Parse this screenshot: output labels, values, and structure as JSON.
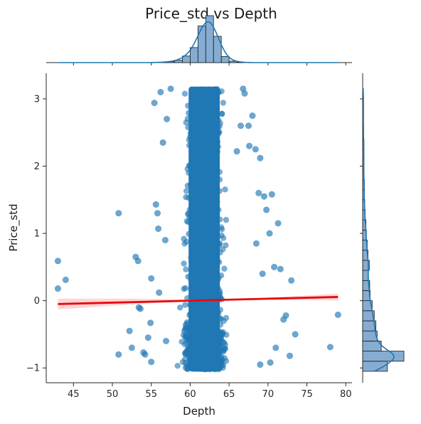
{
  "chart_data": {
    "type": "scatter",
    "title": "Price_std vs Depth",
    "xlabel": "Depth",
    "ylabel": "Price_std",
    "xlim": [
      41.5,
      80.8
    ],
    "ylim": [
      -1.22,
      3.38
    ],
    "x_ticks": [
      45,
      50,
      55,
      60,
      65,
      70,
      75,
      80
    ],
    "y_ticks": [
      -1,
      0,
      1,
      2,
      3
    ],
    "grid": false,
    "legend": "none",
    "colors": {
      "points": "#1f77b4",
      "regression": "#e6090c",
      "confidence_band": "#ffb3b3",
      "hist_fill": "#86add1",
      "kde": "#1f77b4"
    },
    "regression_line": {
      "x": [
        43.0,
        79.0
      ],
      "y": [
        -0.05,
        0.055
      ]
    },
    "confidence_band": {
      "x": [
        43.0,
        52.0,
        61.8,
        70.0,
        79.0
      ],
      "lower": [
        -0.13,
        -0.06,
        0.003,
        0.015,
        0.005
      ],
      "upper": [
        0.03,
        0.03,
        0.014,
        0.045,
        0.105
      ]
    },
    "outlier_points": [
      {
        "x": 43.0,
        "y": 0.59
      },
      {
        "x": 43.0,
        "y": 0.18
      },
      {
        "x": 44.0,
        "y": 0.31
      },
      {
        "x": 50.8,
        "y": 1.3
      },
      {
        "x": 50.8,
        "y": -0.8
      },
      {
        "x": 52.2,
        "y": -0.45
      },
      {
        "x": 52.5,
        "y": -0.7
      },
      {
        "x": 53.0,
        "y": 0.65
      },
      {
        "x": 53.3,
        "y": 0.59
      },
      {
        "x": 53.4,
        "y": -0.1
      },
      {
        "x": 53.6,
        "y": -0.12
      },
      {
        "x": 54.0,
        "y": -0.77
      },
      {
        "x": 54.2,
        "y": -0.8
      },
      {
        "x": 54.6,
        "y": -0.55
      },
      {
        "x": 54.9,
        "y": -0.33
      },
      {
        "x": 55.0,
        "y": 0.33
      },
      {
        "x": 55.0,
        "y": -0.91
      },
      {
        "x": 55.4,
        "y": 2.94
      },
      {
        "x": 55.6,
        "y": 1.43
      },
      {
        "x": 55.8,
        "y": 1.3
      },
      {
        "x": 55.9,
        "y": 1.07
      },
      {
        "x": 56.2,
        "y": 3.1
      },
      {
        "x": 56.0,
        "y": 0.12
      },
      {
        "x": 56.5,
        "y": 2.35
      },
      {
        "x": 57.5,
        "y": 3.15
      },
      {
        "x": 67.0,
        "y": 3.08
      },
      {
        "x": 67.5,
        "y": 2.6
      },
      {
        "x": 67.6,
        "y": 2.3
      },
      {
        "x": 68.0,
        "y": 2.75
      },
      {
        "x": 68.4,
        "y": 2.25
      },
      {
        "x": 68.8,
        "y": 1.6
      },
      {
        "x": 69.0,
        "y": 2.12
      },
      {
        "x": 69.5,
        "y": 1.55
      },
      {
        "x": 69.8,
        "y": 1.35
      },
      {
        "x": 70.2,
        "y": 1.0
      },
      {
        "x": 70.5,
        "y": 1.58
      },
      {
        "x": 70.8,
        "y": 0.5
      },
      {
        "x": 71.3,
        "y": 1.15
      },
      {
        "x": 71.6,
        "y": 0.47
      },
      {
        "x": 72.0,
        "y": -0.28
      },
      {
        "x": 72.3,
        "y": -0.22
      },
      {
        "x": 72.8,
        "y": -0.82
      },
      {
        "x": 73.0,
        "y": 0.3
      },
      {
        "x": 73.5,
        "y": -0.5
      },
      {
        "x": 71.0,
        "y": -0.7
      },
      {
        "x": 70.3,
        "y": -0.92
      },
      {
        "x": 69.0,
        "y": -0.95
      },
      {
        "x": 66.8,
        "y": 3.15
      },
      {
        "x": 66.5,
        "y": 2.6
      },
      {
        "x": 66.0,
        "y": 2.22
      },
      {
        "x": 78.0,
        "y": -0.69
      },
      {
        "x": 79.0,
        "y": -0.21
      },
      {
        "x": 68.5,
        "y": 0.85
      },
      {
        "x": 69.3,
        "y": 0.4
      },
      {
        "x": 56.8,
        "y": 0.9
      },
      {
        "x": 57.0,
        "y": 2.7
      },
      {
        "x": 56.9,
        "y": -0.6
      }
    ],
    "dense_cloud": {
      "x_center": 61.8,
      "x_spread": 1.45,
      "y_min": -1.02,
      "y_max": 3.15
    },
    "marginal_x_hist": {
      "bin_edges": [
        56,
        57,
        58,
        59,
        60,
        61,
        62,
        63,
        64,
        65,
        66,
        67
      ],
      "counts": [
        0.01,
        0.02,
        0.05,
        0.14,
        0.32,
        0.78,
        1.0,
        0.56,
        0.13,
        0.03,
        0.01
      ]
    },
    "marginal_y_hist": {
      "bin_edges": [
        -1.05,
        -0.9,
        -0.75,
        -0.6,
        -0.45,
        -0.3,
        -0.15,
        0.0,
        0.15,
        0.3,
        0.45,
        0.6,
        0.75,
        0.9,
        1.05,
        1.2,
        1.35,
        1.5,
        1.65,
        1.8,
        1.95,
        2.1,
        2.25,
        2.4,
        2.55,
        2.7,
        2.85,
        3.0,
        3.15
      ],
      "counts": [
        0.6,
        1.0,
        0.45,
        0.35,
        0.32,
        0.28,
        0.23,
        0.18,
        0.17,
        0.14,
        0.16,
        0.13,
        0.11,
        0.09,
        0.08,
        0.06,
        0.05,
        0.04,
        0.04,
        0.03,
        0.03,
        0.03,
        0.03,
        0.02,
        0.02,
        0.02,
        0.02,
        0.02
      ]
    }
  }
}
